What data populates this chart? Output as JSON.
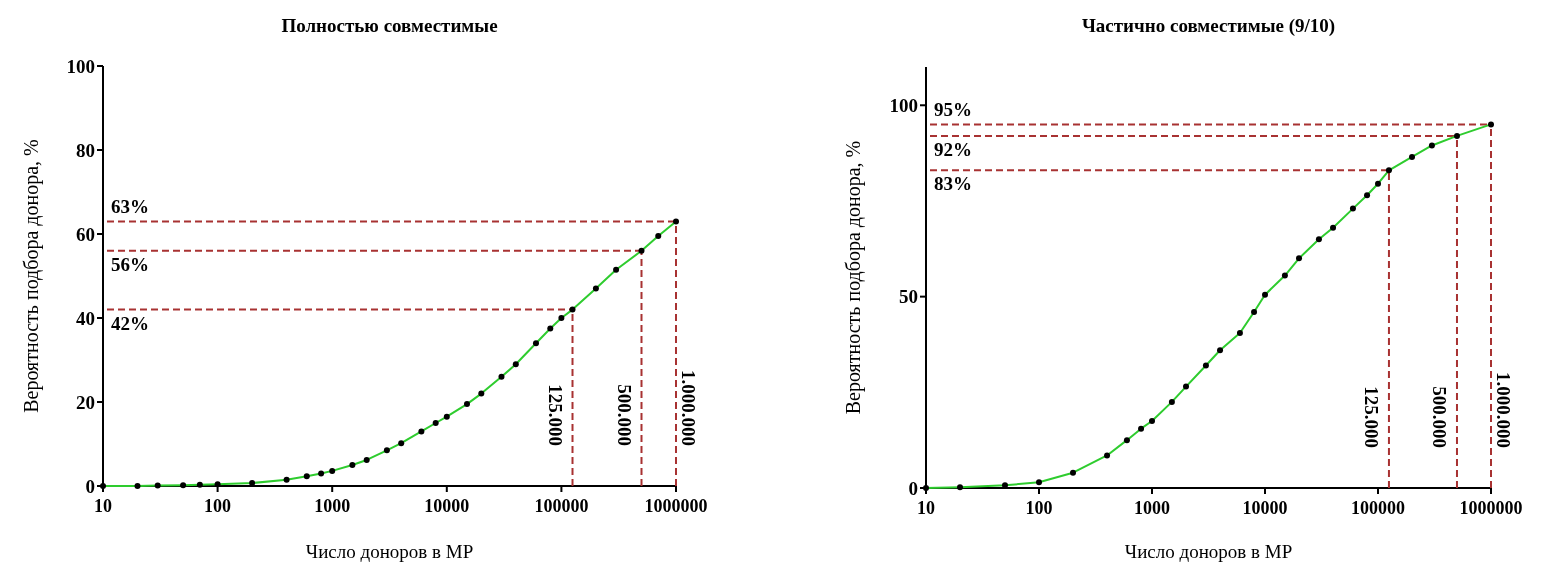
{
  "chart_data": [
    {
      "type": "line",
      "title": "Полностью совместимые",
      "xlabel": "Число доноров в МР",
      "ylabel": "Вероятность подбора донора, %",
      "log": "x",
      "grid": false,
      "marker": "circle",
      "line_style": "solid",
      "xlim": [
        10,
        1000000
      ],
      "xticks": [
        10,
        100,
        1000,
        10000,
        100000,
        1000000
      ],
      "ylim": [
        0,
        100
      ],
      "yticks": [
        0,
        20,
        40,
        60,
        80,
        100
      ],
      "series": [
        {
          "color": "#2ecc2e",
          "x": [
            10,
            20,
            30,
            50,
            70,
            100,
            200,
            400,
            600,
            800,
            1000,
            1500,
            2000,
            3000,
            4000,
            6000,
            8000,
            10000,
            15000,
            20000,
            30000,
            40000,
            60000,
            80000,
            100000,
            125000,
            200000,
            300000,
            500000,
            700000,
            1000000
          ],
          "values": [
            0,
            0,
            0.1,
            0.2,
            0.3,
            0.4,
            0.7,
            1.5,
            2.3,
            3,
            3.6,
            5,
            6.2,
            8.5,
            10.2,
            13,
            15,
            16.5,
            19.5,
            22,
            26,
            29,
            34,
            37.5,
            40,
            42,
            47,
            51.5,
            56,
            59.5,
            63
          ]
        }
      ],
      "ref_lines": [
        {
          "axis": "y",
          "value": 63,
          "label": "63%",
          "color": "#a83232",
          "line_style": "dashed"
        },
        {
          "axis": "y",
          "value": 56,
          "label": "56%",
          "color": "#a83232",
          "line_style": "dashed"
        },
        {
          "axis": "y",
          "value": 42,
          "label": "42%",
          "color": "#a83232",
          "line_style": "dashed"
        },
        {
          "axis": "x",
          "value": 125000,
          "label": "125.000",
          "color": "#a83232",
          "line_style": "dashed"
        },
        {
          "axis": "x",
          "value": 500000,
          "label": "500.000",
          "color": "#a83232",
          "line_style": "dashed"
        },
        {
          "axis": "x",
          "value": 1000000,
          "label": "1.000.000",
          "color": "#a83232",
          "line_style": "dashed"
        }
      ]
    },
    {
      "type": "line",
      "title": "Частично совместимые (9/10)",
      "xlabel": "Число доноров в МР",
      "ylabel": "Вероятность подбора донора, %",
      "log": "x",
      "grid": false,
      "marker": "circle",
      "line_style": "solid",
      "xlim": [
        10,
        1000000
      ],
      "xticks": [
        10,
        100,
        1000,
        10000,
        100000,
        1000000
      ],
      "ylim": [
        0,
        110
      ],
      "yticks": [
        0,
        50,
        100
      ],
      "series": [
        {
          "color": "#2ecc2e",
          "x": [
            10,
            20,
            50,
            100,
            200,
            400,
            600,
            800,
            1000,
            1500,
            2000,
            3000,
            4000,
            6000,
            8000,
            10000,
            15000,
            20000,
            30000,
            40000,
            60000,
            80000,
            100000,
            125000,
            200000,
            300000,
            500000,
            1000000
          ],
          "values": [
            0,
            0.2,
            0.7,
            1.5,
            4,
            8.5,
            12.5,
            15.5,
            17.5,
            22.5,
            26.5,
            32,
            36,
            40.5,
            46,
            50.5,
            55.5,
            60,
            65,
            68,
            73,
            76.5,
            79.5,
            83,
            86.5,
            89.5,
            92,
            95
          ]
        }
      ],
      "ref_lines": [
        {
          "axis": "y",
          "value": 95,
          "label": "95%",
          "color": "#a83232",
          "line_style": "dashed"
        },
        {
          "axis": "y",
          "value": 92,
          "label": "92%",
          "color": "#a83232",
          "line_style": "dashed"
        },
        {
          "axis": "y",
          "value": 83,
          "label": "83%",
          "color": "#a83232",
          "line_style": "dashed"
        },
        {
          "axis": "x",
          "value": 125000,
          "label": "125.000",
          "color": "#a83232",
          "line_style": "dashed"
        },
        {
          "axis": "x",
          "value": 500000,
          "label": "500.000",
          "color": "#a83232",
          "line_style": "dashed"
        },
        {
          "axis": "x",
          "value": 1000000,
          "label": "1.000.000",
          "color": "#a83232",
          "line_style": "dashed"
        }
      ]
    }
  ]
}
